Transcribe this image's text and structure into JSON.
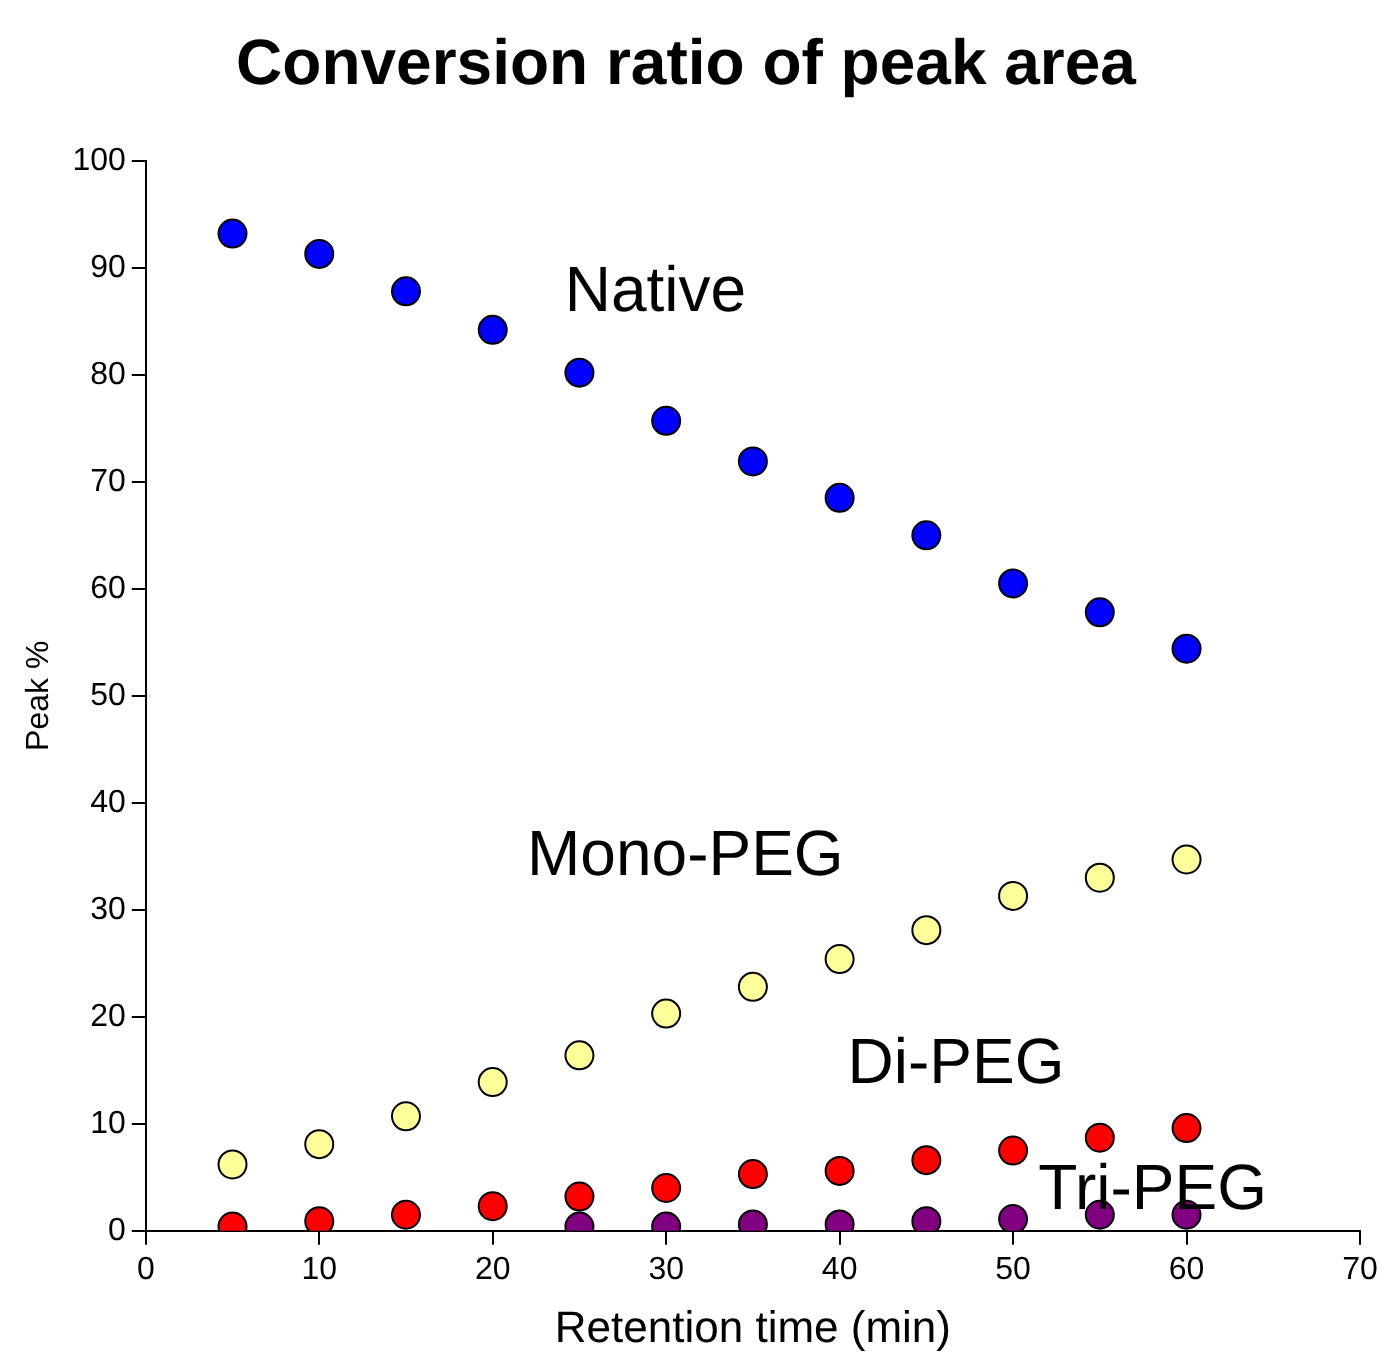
{
  "chart_data": {
    "type": "scatter",
    "title": "Conversion ratio of peak area",
    "xlabel": "Retention time (min)",
    "ylabel": "Peak %",
    "xlim": [
      0,
      70
    ],
    "xticks": [
      0,
      10,
      20,
      30,
      40,
      50,
      60,
      70
    ],
    "ylim": [
      0,
      100
    ],
    "yticks": [
      0,
      10,
      20,
      30,
      40,
      50,
      60,
      70,
      80,
      90,
      100
    ],
    "grid": false,
    "legend": false,
    "marker": "circle",
    "series": [
      {
        "color": "#0000ff",
        "x": [
          5,
          10,
          15,
          20,
          25,
          30,
          35,
          40,
          45,
          50,
          55,
          60
        ],
        "values": [
          93.2,
          91.3,
          87.8,
          84.2,
          80.2,
          75.7,
          71.9,
          68.5,
          65.0,
          60.5,
          57.8,
          54.4
        ]
      },
      {
        "color": "#ffff99",
        "x": [
          5,
          10,
          15,
          20,
          25,
          30,
          35,
          40,
          45,
          50,
          55,
          60
        ],
        "values": [
          6.2,
          8.1,
          10.7,
          13.9,
          16.4,
          20.3,
          22.8,
          25.4,
          28.1,
          31.3,
          33.0,
          34.7
        ]
      },
      {
        "color": "#ff0000",
        "x": [
          5,
          10,
          15,
          20,
          25,
          30,
          35,
          40,
          45,
          50,
          55,
          60
        ],
        "values": [
          0.4,
          0.9,
          1.5,
          2.3,
          3.2,
          4.0,
          5.3,
          5.6,
          6.6,
          7.5,
          8.7,
          9.6
        ]
      },
      {
        "color": "#800080",
        "x": [
          25,
          30,
          35,
          40,
          45,
          50,
          55,
          60
        ],
        "values": [
          0.4,
          0.4,
          0.6,
          0.6,
          0.9,
          1.1,
          1.5,
          1.5
        ]
      }
    ],
    "annotations": [
      "Native",
      "Mono-PEG",
      "Di-PEG",
      "Tri-PEG"
    ]
  }
}
